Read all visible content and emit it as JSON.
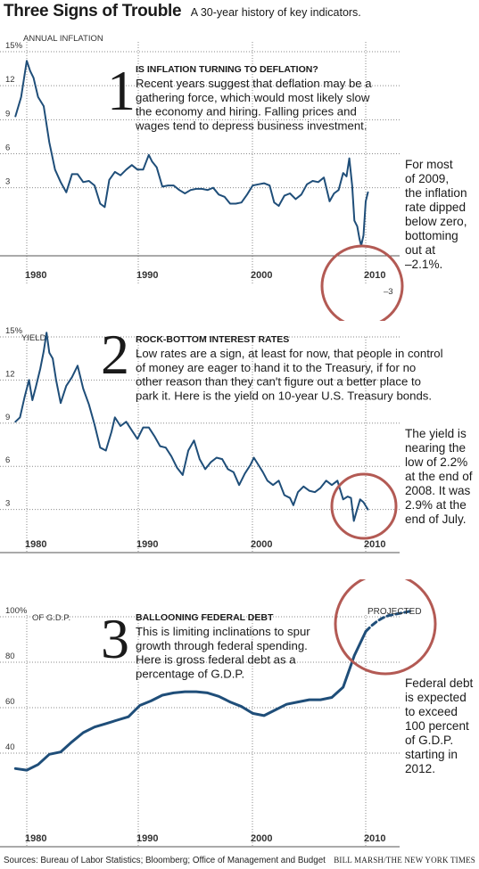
{
  "header": {
    "title": "Three Signs of Trouble",
    "subtitle": "A 30-year history of key indicators."
  },
  "colors": {
    "line": "#1f4e79",
    "highlight_circle": "#b35a54",
    "axis": "#555555",
    "grid": "#8a8a8a"
  },
  "chart_data": [
    {
      "type": "line",
      "id": "inflation",
      "number": "1",
      "section_title": "IS INFLATION TURNING TO DEFLATION?",
      "description": [
        "Recent years suggest that deflation may be a",
        "gathering force, which would most likely slow",
        "the economy and hiring. Falling prices and",
        "wages tend to depress business investment."
      ],
      "ylabel": "ANNUAL INFLATION",
      "yticks": [
        "15%",
        "12",
        "9",
        "6",
        "3",
        "–3"
      ],
      "ytick_values": [
        15,
        12,
        9,
        6,
        3,
        -3
      ],
      "xticks": [
        "1980",
        "1990",
        "2000",
        "2010"
      ],
      "xtick_values": [
        1980,
        1990,
        2000,
        2010
      ],
      "xlim": [
        1979,
        2010.5
      ],
      "ylim": [
        -4,
        16
      ],
      "grid": true,
      "note": [
        "For most",
        "of 2009,",
        "the inflation",
        "rate dipped",
        "below zero,",
        "bottoming",
        "out at",
        "–2.1%."
      ],
      "series": [
        {
          "x": [
            1979.0,
            1979.5,
            1980.0,
            1980.3,
            1980.6,
            1981.0,
            1981.5,
            1982.0,
            1982.5,
            1983.0,
            1983.5,
            1984.0,
            1984.5,
            1985.0,
            1985.5,
            1986.0,
            1986.5,
            1986.9,
            1987.3,
            1987.8,
            1988.3,
            1988.8,
            1989.3,
            1989.8,
            1990.3,
            1990.8,
            1991.1,
            1991.5,
            1992.0,
            1992.5,
            1993.0,
            1993.5,
            1994.0,
            1994.5,
            1995.0,
            1995.5,
            1996.0,
            1996.5,
            1997.0,
            1997.5,
            1998.0,
            1998.5,
            1999.0,
            1999.5,
            2000.0,
            2000.5,
            2001.0,
            2001.5,
            2001.9,
            2002.3,
            2002.8,
            2003.3,
            2003.8,
            2004.3,
            2004.8,
            2005.3,
            2005.8,
            2006.3,
            2006.8,
            2007.2,
            2007.6,
            2008.0,
            2008.3,
            2008.55,
            2008.8,
            2009.0,
            2009.25,
            2009.45,
            2009.6,
            2009.8,
            2010.0,
            2010.2
          ],
          "y": [
            9.3,
            11.0,
            14.2,
            13.3,
            12.7,
            11.0,
            10.2,
            7.0,
            4.6,
            3.5,
            2.6,
            4.2,
            4.2,
            3.5,
            3.6,
            3.2,
            1.6,
            1.3,
            3.7,
            4.4,
            4.1,
            4.6,
            5.0,
            4.6,
            4.6,
            5.9,
            5.3,
            4.8,
            3.1,
            3.2,
            3.2,
            2.8,
            2.5,
            2.8,
            2.9,
            2.9,
            2.8,
            3.0,
            2.4,
            2.2,
            1.6,
            1.6,
            1.7,
            2.4,
            3.2,
            3.3,
            3.4,
            3.2,
            1.7,
            1.4,
            2.3,
            2.5,
            2.0,
            2.4,
            3.3,
            3.6,
            3.5,
            3.9,
            1.8,
            2.5,
            2.8,
            4.3,
            4.0,
            5.6,
            3.2,
            0.1,
            -0.4,
            -1.5,
            -2.1,
            -1.2,
            1.8,
            2.6
          ]
        }
      ]
    },
    {
      "type": "line",
      "id": "yield",
      "number": "2",
      "section_title": "ROCK-BOTTOM INTEREST RATES",
      "description": [
        "Low rates are a sign, at least for now, that people in control",
        "of money are eager to hand it to the Treasury, if for no",
        "other reason than they can't figure out a better place to",
        "park it. Here is the yield on 10-year U.S. Treasury bonds."
      ],
      "ylabel": "YIELD",
      "yticks": [
        "15%",
        "12",
        "9",
        "6",
        "3"
      ],
      "ytick_values": [
        15,
        12,
        9,
        6,
        3
      ],
      "xticks": [
        "1980",
        "1990",
        "2000",
        "2010"
      ],
      "xtick_values": [
        1980,
        1990,
        2000,
        2010
      ],
      "xlim": [
        1979,
        2010.5
      ],
      "ylim": [
        0,
        16
      ],
      "grid": true,
      "note": [
        "The yield is",
        "nearing the",
        "low of 2.2%",
        "at the end of",
        "2008. It was",
        "2.9% at the",
        "end of July."
      ],
      "series": [
        {
          "x": [
            1979.0,
            1979.4,
            1979.8,
            1980.2,
            1980.5,
            1980.8,
            1981.2,
            1981.5,
            1981.75,
            1982.0,
            1982.3,
            1982.6,
            1983.0,
            1983.5,
            1984.0,
            1984.5,
            1985.0,
            1985.5,
            1986.0,
            1986.5,
            1987.0,
            1987.5,
            1987.8,
            1988.3,
            1988.8,
            1989.3,
            1989.8,
            1990.3,
            1990.8,
            1991.3,
            1991.8,
            1992.3,
            1992.8,
            1993.3,
            1993.8,
            1994.3,
            1994.8,
            1995.3,
            1995.8,
            1996.3,
            1996.8,
            1997.3,
            1997.8,
            1998.3,
            1998.8,
            1999.3,
            1999.8,
            2000.1,
            2000.5,
            2000.9,
            2001.3,
            2001.8,
            2002.3,
            2002.8,
            2003.3,
            2003.6,
            2004.0,
            2004.5,
            2005.0,
            2005.5,
            2006.0,
            2006.5,
            2007.0,
            2007.5,
            2008.0,
            2008.4,
            2008.7,
            2008.95,
            2009.2,
            2009.5,
            2009.8,
            2010.2
          ],
          "y": [
            9.1,
            9.4,
            10.8,
            12.0,
            10.6,
            11.5,
            12.8,
            14.0,
            15.3,
            13.9,
            13.5,
            12.0,
            10.4,
            11.6,
            12.2,
            13.0,
            11.4,
            10.3,
            8.9,
            7.3,
            7.1,
            8.4,
            9.4,
            8.8,
            9.1,
            8.5,
            7.9,
            8.7,
            8.7,
            8.1,
            7.4,
            7.3,
            6.7,
            5.9,
            5.4,
            7.1,
            7.8,
            6.5,
            5.8,
            6.3,
            6.6,
            6.5,
            5.8,
            5.6,
            4.7,
            5.5,
            6.1,
            6.6,
            6.1,
            5.6,
            5.0,
            4.7,
            5.0,
            4.0,
            3.8,
            3.3,
            4.2,
            4.6,
            4.3,
            4.2,
            4.5,
            5.0,
            4.7,
            5.0,
            3.7,
            3.9,
            3.8,
            2.2,
            2.9,
            3.7,
            3.5,
            3.0
          ]
        }
      ]
    },
    {
      "type": "line",
      "id": "debt",
      "number": "3",
      "section_title": "BALLOONING FEDERAL DEBT",
      "description": [
        "This is limiting inclinations to spur",
        "growth through federal spending.",
        "Here is gross federal debt as a",
        "percentage of G.D.P."
      ],
      "ylabel": "OF G.D.P.",
      "yticks": [
        "100%",
        "80",
        "60",
        "40"
      ],
      "ytick_values": [
        100,
        80,
        60,
        40
      ],
      "xticks": [
        "1980",
        "1990",
        "2000",
        "2010"
      ],
      "xtick_values": [
        1980,
        1990,
        2000,
        2010
      ],
      "xlim": [
        1979,
        2014.8
      ],
      "ylim": [
        22,
        110
      ],
      "grid": true,
      "projected_label": "PROJECTED",
      "note": [
        "Federal debt",
        "is expected",
        "to exceed",
        "100 percent",
        "of G.D.P.",
        "starting in",
        "2012."
      ],
      "series": [
        {
          "name": "actual",
          "x": [
            1979,
            1980,
            1981,
            1982,
            1983,
            1984,
            1985,
            1986,
            1987,
            1988,
            1989,
            1990,
            1991,
            1992,
            1993,
            1994,
            1995,
            1996,
            1997,
            1998,
            1999,
            2000,
            2001,
            2002,
            2003,
            2004,
            2005,
            2006,
            2007,
            2008,
            2009,
            2010
          ],
          "y": [
            33.2,
            32.5,
            35.0,
            39.5,
            40.5,
            45.0,
            49.0,
            51.5,
            53.0,
            54.5,
            56.0,
            61.0,
            63.0,
            65.5,
            66.5,
            67.0,
            67.0,
            66.5,
            65.0,
            62.5,
            60.5,
            57.5,
            56.5,
            59.0,
            61.5,
            62.5,
            63.5,
            63.5,
            64.5,
            69.0,
            83.0,
            93.5
          ]
        },
        {
          "name": "projected",
          "x": [
            2010,
            2010.5,
            2011,
            2011.5,
            2012,
            2013,
            2014
          ],
          "y": [
            93.5,
            96.0,
            98.0,
            99.5,
            100.5,
            101.5,
            102.5
          ]
        }
      ]
    }
  ],
  "footer": {
    "sources": "Sources: Bureau of Labor Statistics; Bloomberg; Office of Management and Budget",
    "credit": "BILL MARSH/THE NEW YORK TIMES"
  }
}
